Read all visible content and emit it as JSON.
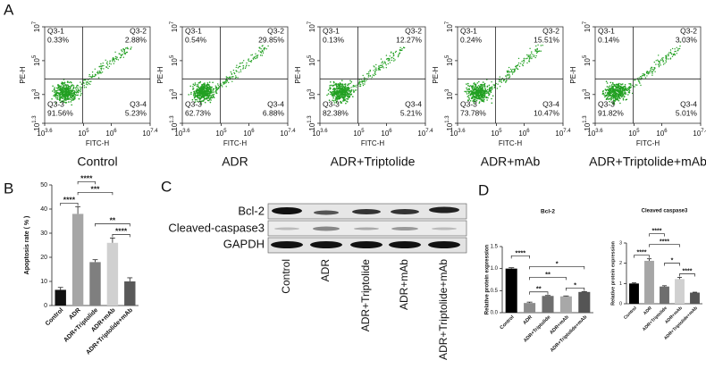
{
  "panel_labels": [
    "A",
    "B",
    "C",
    "D"
  ],
  "chart_data": [
    {
      "type": "flow",
      "title": "Control",
      "x_label": "FITC-H",
      "y_label": "PE-H",
      "tick_base": "10",
      "xlim": [
        3.6,
        7.4
      ],
      "xticks": [
        3.6,
        5,
        6,
        7.4
      ],
      "ylim": [
        1.3,
        7
      ],
      "yticks": [
        1.3,
        3,
        5,
        7
      ],
      "color": "#22a022",
      "categories": [
        "Q3-1",
        "Q3-2",
        "Q3-3",
        "Q3-4"
      ],
      "values": [
        0.33,
        2.88,
        91.56,
        5.23
      ],
      "value_labels": [
        "0.33%",
        "2.88%",
        "91.56%",
        "5.23%"
      ]
    },
    {
      "type": "flow",
      "title": "ADR",
      "x_label": "FITC-H",
      "y_label": "PE-H",
      "tick_base": "10",
      "xlim": [
        3.6,
        7.4
      ],
      "xticks": [
        3.6,
        5,
        6,
        7.4
      ],
      "ylim": [
        1.3,
        7
      ],
      "yticks": [
        1.3,
        3,
        5,
        7
      ],
      "color": "#22a022",
      "categories": [
        "Q3-1",
        "Q3-2",
        "Q3-3",
        "Q3-4"
      ],
      "values": [
        0.54,
        29.85,
        62.73,
        6.88
      ],
      "value_labels": [
        "0.54%",
        "29.85%",
        "62.73%",
        "6.88%"
      ]
    },
    {
      "type": "flow",
      "title": "ADR+Triptolide",
      "x_label": "FITC-H",
      "y_label": "PE-H",
      "tick_base": "10",
      "xlim": [
        3.6,
        7.4
      ],
      "xticks": [
        3.6,
        5,
        6,
        7.4
      ],
      "ylim": [
        1.3,
        7
      ],
      "yticks": [
        1.3,
        3,
        5,
        7
      ],
      "color": "#22a022",
      "categories": [
        "Q3-1",
        "Q3-2",
        "Q3-3",
        "Q3-4"
      ],
      "values": [
        0.13,
        12.27,
        82.38,
        5.21
      ],
      "value_labels": [
        "0.13%",
        "12.27%",
        "82.38%",
        "5.21%"
      ]
    },
    {
      "type": "flow",
      "title": "ADR+mAb",
      "x_label": "FITC-H",
      "y_label": "PE-H",
      "tick_base": "10",
      "xlim": [
        3.6,
        7.4
      ],
      "xticks": [
        3.6,
        5,
        6,
        7.4
      ],
      "ylim": [
        1.3,
        7
      ],
      "yticks": [
        1.3,
        3,
        5,
        7
      ],
      "color": "#22a022",
      "categories": [
        "Q3-1",
        "Q3-2",
        "Q3-3",
        "Q3-4"
      ],
      "values": [
        0.24,
        15.51,
        73.78,
        10.47
      ],
      "value_labels": [
        "0.24%",
        "15.51%",
        "73.78%",
        "10.47%"
      ]
    },
    {
      "type": "flow",
      "title": "ADR+Triptolide+mAb",
      "x_label": "FITC-H",
      "y_label": "PE-H",
      "tick_base": "10",
      "xlim": [
        3.6,
        7.4
      ],
      "xticks": [
        3.6,
        5,
        6,
        7.4
      ],
      "ylim": [
        1.3,
        7
      ],
      "yticks": [
        1.3,
        3,
        5,
        7
      ],
      "color": "#22a022",
      "categories": [
        "Q3-1",
        "Q3-2",
        "Q3-3",
        "Q3-4"
      ],
      "values": [
        0.14,
        3.03,
        91.82,
        5.01
      ],
      "value_labels": [
        "0.14%",
        "3.03%",
        "91.82%",
        "5.01%"
      ]
    },
    {
      "type": "bar",
      "y_label": "Apoptosis rate ( % )",
      "categories": [
        "Control",
        "ADR",
        "ADR+Triptolide",
        "ADR+mAb",
        "ADR+Triptolide+mAb"
      ],
      "values": [
        6.5,
        38,
        18,
        26,
        10
      ],
      "errors": [
        1,
        3,
        1,
        2,
        1.5
      ],
      "colors": [
        "#111111",
        "#a6a6a6",
        "#7f7f7f",
        "#d0d0d0",
        "#595959"
      ],
      "ylim": [
        0,
        50
      ],
      "yticks": [
        0,
        10,
        20,
        30,
        40,
        50
      ],
      "comparisons": [
        {
          "pair": [
            3,
            4
          ],
          "label": "****"
        },
        {
          "pair": [
            2,
            4
          ],
          "label": "**"
        },
        {
          "pair": [
            0,
            1
          ],
          "label": "****"
        },
        {
          "pair": [
            1,
            3
          ],
          "label": "***"
        },
        {
          "pair": [
            1,
            2
          ],
          "label": "****"
        }
      ]
    },
    {
      "type": "bar",
      "title": "Bcl-2",
      "y_label": "Relative protein expression",
      "categories": [
        "Control",
        "ADR",
        "ADR+Triptolide",
        "ADR+mAb",
        "ADR+Triptolide+mAb"
      ],
      "values": [
        1.0,
        0.22,
        0.38,
        0.37,
        0.47
      ],
      "errors": [
        0.02,
        0.02,
        0.01,
        0.01,
        0.01
      ],
      "colors": [
        "#000000",
        "#8c8c8c",
        "#6e6e6e",
        "#a8a8a8",
        "#555555"
      ],
      "ylim": [
        0,
        1.5
      ],
      "yticks": [
        {
          "value": 0,
          "label": "0.0"
        },
        0.5,
        {
          "value": 1,
          "label": "1.0"
        },
        1.5
      ],
      "comparisons": [
        {
          "pair": [
            1,
            2
          ],
          "label": "**"
        },
        {
          "pair": [
            3,
            4
          ],
          "label": "*"
        },
        {
          "pair": [
            1,
            3
          ],
          "label": "**"
        },
        {
          "pair": [
            1,
            4
          ],
          "label": "*"
        },
        {
          "pair": [
            0,
            1
          ],
          "label": "****"
        }
      ]
    },
    {
      "type": "bar",
      "title": "Cleaved caspase3",
      "y_label": "Relative protein expression",
      "categories": [
        "Control",
        "ADR",
        "ADR+Triptolide",
        "ADR+mAb",
        "ADR+Triptolide+mAb"
      ],
      "values": [
        1.0,
        2.12,
        0.85,
        1.22,
        0.55
      ],
      "errors": [
        0.03,
        0.1,
        0.04,
        0.08,
        0.02
      ],
      "colors": [
        "#000000",
        "#a6a6a6",
        "#6e6e6e",
        "#d0d0d0",
        "#555555"
      ],
      "ylim": [
        0,
        3
      ],
      "yticks": [
        0,
        1,
        2,
        3
      ],
      "comparisons": [
        {
          "pair": [
            3,
            4
          ],
          "label": "****"
        },
        {
          "pair": [
            2,
            3
          ],
          "label": "*"
        },
        {
          "pair": [
            0,
            1
          ],
          "label": "****"
        },
        {
          "pair": [
            1,
            3
          ],
          "label": "****"
        },
        {
          "pair": [
            1,
            2
          ],
          "label": "****"
        }
      ]
    }
  ],
  "blot": {
    "rows": [
      "Bcl-2",
      "Cleaved-caspase3",
      "GAPDH"
    ],
    "lanes": [
      "Control",
      "ADR",
      "ADR+Triptolide",
      "ADR+mAb",
      "ADR+Triptolide+mAb"
    ]
  }
}
